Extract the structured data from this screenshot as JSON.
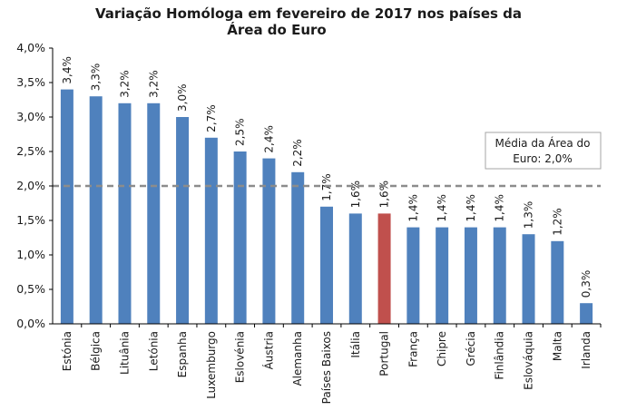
{
  "chart_data": {
    "type": "bar",
    "title_lines": [
      "Variação Homóloga em fevereiro de 2017 nos países da",
      "Área do Euro"
    ],
    "categories": [
      "Estónia",
      "Bélgica",
      "Lituânia",
      "Letónia",
      "Espanha",
      "Luxemburgo",
      "Eslovénia",
      "Áustria",
      "Alemanha",
      "Países Baixos",
      "Itália",
      "Portugal",
      "França",
      "Chipre",
      "Grécia",
      "Finlândia",
      "Eslováquia",
      "Malta",
      "Irlanda"
    ],
    "values": [
      3.4,
      3.3,
      3.2,
      3.2,
      3.0,
      2.7,
      2.5,
      2.4,
      2.2,
      1.7,
      1.6,
      1.6,
      1.4,
      1.4,
      1.4,
      1.4,
      1.3,
      1.2,
      0.3
    ],
    "value_labels": [
      "3,4%",
      "3,3%",
      "3,2%",
      "3,2%",
      "3,0%",
      "2,7%",
      "2,5%",
      "2,4%",
      "2,2%",
      "1,7%",
      "1,6%",
      "1,6%",
      "1,4%",
      "1,4%",
      "1,4%",
      "1,4%",
      "1,3%",
      "1,2%",
      "0,3%"
    ],
    "highlight_category": "Portugal",
    "colors": {
      "bar": "#4f81bd",
      "highlight": "#c0504d",
      "average_line": "#8c8c8c",
      "axis": "#000000"
    },
    "ylim": [
      0,
      4.0
    ],
    "yticks": [
      0,
      0.5,
      1.0,
      1.5,
      2.0,
      2.5,
      3.0,
      3.5,
      4.0
    ],
    "ytick_labels": [
      "0,0%",
      "0,5%",
      "1,0%",
      "1,5%",
      "2,0%",
      "2,5%",
      "3,0%",
      "3,5%",
      "4,0%"
    ],
    "average": {
      "value": 2.0,
      "label_lines": [
        "Média da Área do",
        "Euro: 2,0%"
      ]
    },
    "xlabel": "",
    "ylabel": ""
  }
}
